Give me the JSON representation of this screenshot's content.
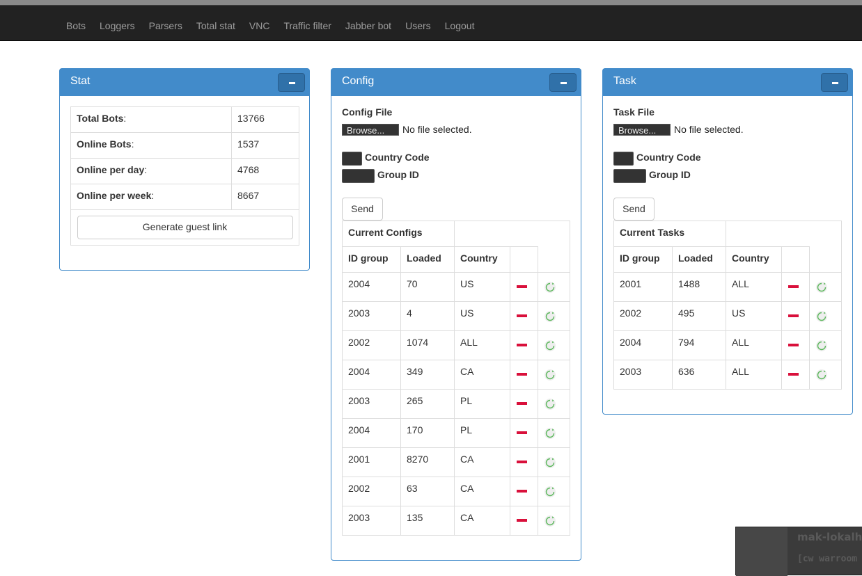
{
  "nav": {
    "items": [
      "Bots",
      "Loggers",
      "Parsers",
      "Total stat",
      "VNC",
      "Traffic filter",
      "Jabber bot",
      "Users",
      "Logout"
    ]
  },
  "stat": {
    "title": "Stat",
    "rows": [
      {
        "label": "Total Bots",
        "value": "13766"
      },
      {
        "label": "Online Bots",
        "value": "1537"
      },
      {
        "label": "Online per day",
        "value": "4768"
      },
      {
        "label": "Online per week",
        "value": "8667"
      }
    ],
    "guest_link_label": "Generate guest link"
  },
  "config": {
    "title": "Config",
    "file_label": "Config File",
    "browse_label": "Browse...",
    "no_file_text": "No file selected.",
    "country_code_label": "Country Code",
    "group_id_label": "Group ID",
    "send_label": "Send",
    "table_title": "Current Configs",
    "columns": [
      "ID group",
      "Loaded",
      "Country"
    ],
    "rows": [
      {
        "id": "2004",
        "loaded": "70",
        "country": "US"
      },
      {
        "id": "2003",
        "loaded": "4",
        "country": "US"
      },
      {
        "id": "2002",
        "loaded": "1074",
        "country": "ALL"
      },
      {
        "id": "2004",
        "loaded": "349",
        "country": "CA"
      },
      {
        "id": "2003",
        "loaded": "265",
        "country": "PL"
      },
      {
        "id": "2004",
        "loaded": "170",
        "country": "PL"
      },
      {
        "id": "2001",
        "loaded": "8270",
        "country": "CA"
      },
      {
        "id": "2002",
        "loaded": "63",
        "country": "CA"
      },
      {
        "id": "2003",
        "loaded": "135",
        "country": "CA"
      }
    ]
  },
  "task": {
    "title": "Task",
    "file_label": "Task File",
    "browse_label": "Browse...",
    "no_file_text": "No file selected.",
    "country_code_label": "Country Code",
    "group_id_label": "Group ID",
    "send_label": "Send",
    "table_title": "Current Tasks",
    "columns": [
      "ID group",
      "Loaded",
      "Country"
    ],
    "rows": [
      {
        "id": "2001",
        "loaded": "1488",
        "country": "ALL"
      },
      {
        "id": "2002",
        "loaded": "495",
        "country": "US"
      },
      {
        "id": "2004",
        "loaded": "794",
        "country": "ALL"
      },
      {
        "id": "2003",
        "loaded": "636",
        "country": "ALL"
      }
    ]
  },
  "chat_popup": {
    "title": "mak-lokalh",
    "subtitle": "[cw warroom"
  },
  "colors": {
    "navbar": "#222222",
    "panel_primary": "#428bca",
    "delete": "#d9103b",
    "reload": "#5cb85c"
  }
}
